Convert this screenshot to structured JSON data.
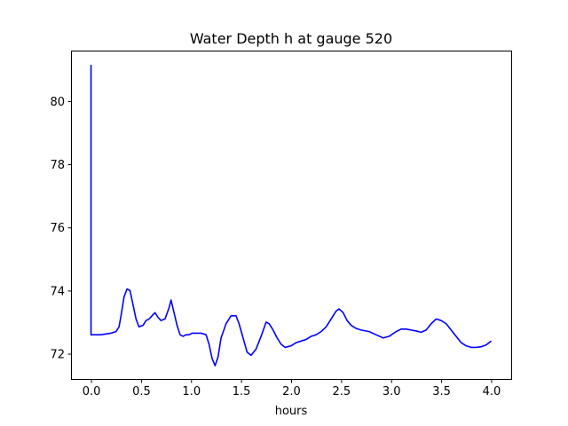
{
  "chart_data": {
    "type": "line",
    "title": "Water Depth h at gauge 520",
    "xlabel": "hours",
    "ylabel": "",
    "xlim": [
      -0.2,
      4.2
    ],
    "ylim": [
      71.2,
      81.6
    ],
    "xticks": [
      0.0,
      0.5,
      1.0,
      1.5,
      2.0,
      2.5,
      3.0,
      3.5,
      4.0
    ],
    "xtick_labels": [
      "0.0",
      "0.5",
      "1.0",
      "1.5",
      "2.0",
      "2.5",
      "3.0",
      "3.5",
      "4.0"
    ],
    "yticks": [
      72,
      74,
      76,
      78,
      80
    ],
    "ytick_labels": [
      "72",
      "74",
      "76",
      "78",
      "80"
    ],
    "grid": false,
    "series": [
      {
        "color": "#0000ff",
        "x": [
          0.0,
          0.0,
          0.005,
          0.01,
          0.05,
          0.1,
          0.2,
          0.25,
          0.28,
          0.3,
          0.33,
          0.36,
          0.39,
          0.42,
          0.45,
          0.48,
          0.52,
          0.55,
          0.58,
          0.61,
          0.64,
          0.67,
          0.7,
          0.74,
          0.78,
          0.8,
          0.83,
          0.86,
          0.89,
          0.92,
          0.95,
          0.98,
          1.01,
          1.05,
          1.1,
          1.15,
          1.18,
          1.21,
          1.24,
          1.27,
          1.3,
          1.35,
          1.4,
          1.45,
          1.48,
          1.52,
          1.56,
          1.6,
          1.65,
          1.7,
          1.75,
          1.78,
          1.82,
          1.86,
          1.9,
          1.94,
          2.0,
          2.05,
          2.1,
          2.15,
          2.2,
          2.25,
          2.3,
          2.35,
          2.4,
          2.45,
          2.48,
          2.52,
          2.56,
          2.6,
          2.65,
          2.7,
          2.78,
          2.85,
          2.92,
          2.98,
          3.05,
          3.1,
          3.15,
          3.2,
          3.25,
          3.3,
          3.35,
          3.4,
          3.45,
          3.5,
          3.55,
          3.6,
          3.65,
          3.7,
          3.75,
          3.8,
          3.85,
          3.9,
          3.95,
          4.0
        ],
        "y": [
          81.15,
          72.6,
          72.6,
          72.6,
          72.6,
          72.6,
          72.65,
          72.7,
          72.85,
          73.2,
          73.8,
          74.05,
          74.0,
          73.55,
          73.1,
          72.85,
          72.9,
          73.05,
          73.1,
          73.2,
          73.3,
          73.15,
          73.05,
          73.1,
          73.45,
          73.7,
          73.3,
          72.9,
          72.6,
          72.55,
          72.6,
          72.6,
          72.65,
          72.65,
          72.65,
          72.6,
          72.3,
          71.85,
          71.62,
          71.9,
          72.5,
          72.95,
          73.2,
          73.2,
          72.95,
          72.5,
          72.05,
          71.95,
          72.15,
          72.55,
          73.0,
          72.95,
          72.75,
          72.5,
          72.3,
          72.2,
          72.25,
          72.35,
          72.4,
          72.45,
          72.55,
          72.6,
          72.7,
          72.85,
          73.1,
          73.35,
          73.42,
          73.3,
          73.05,
          72.9,
          72.8,
          72.75,
          72.7,
          72.6,
          72.5,
          72.55,
          72.7,
          72.78,
          72.78,
          72.75,
          72.72,
          72.68,
          72.75,
          72.95,
          73.1,
          73.05,
          72.95,
          72.75,
          72.55,
          72.35,
          72.25,
          72.2,
          72.2,
          72.22,
          72.28,
          72.4
        ]
      }
    ]
  }
}
